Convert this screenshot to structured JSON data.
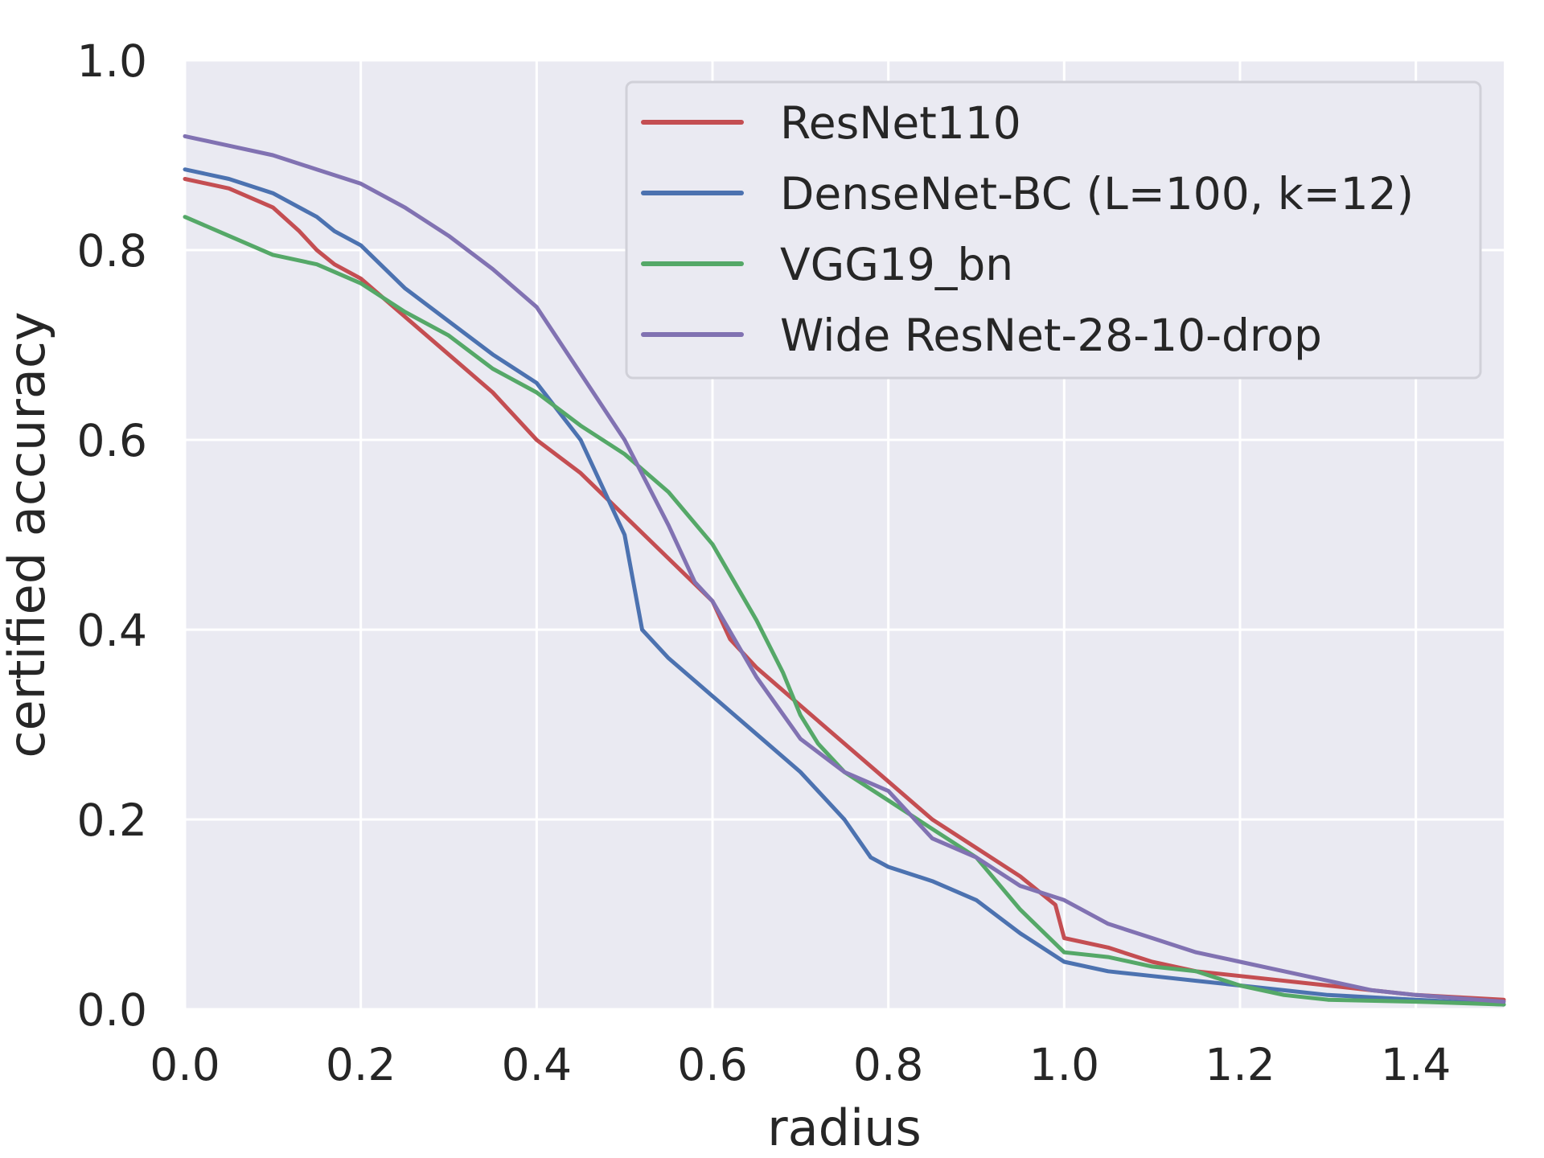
{
  "chart_data": {
    "type": "line",
    "title": "",
    "xlabel": "radius",
    "ylabel": "certified accuracy",
    "xlim": [
      0.0,
      1.5
    ],
    "ylim": [
      0.0,
      1.0
    ],
    "xticks": [
      "0.0",
      "0.2",
      "0.4",
      "0.6",
      "0.8",
      "1.0",
      "1.2",
      "1.4"
    ],
    "yticks": [
      "0.0",
      "0.2",
      "0.4",
      "0.6",
      "0.8",
      "1.0"
    ],
    "grid": true,
    "legend_position": "top-right",
    "series": [
      {
        "name": "ResNet110",
        "color": "#c44e52",
        "x": [
          0.0,
          0.05,
          0.1,
          0.13,
          0.15,
          0.17,
          0.2,
          0.25,
          0.3,
          0.35,
          0.4,
          0.45,
          0.5,
          0.55,
          0.6,
          0.62,
          0.65,
          0.7,
          0.75,
          0.8,
          0.85,
          0.9,
          0.95,
          0.99,
          1.0,
          1.05,
          1.1,
          1.15,
          1.2,
          1.3,
          1.4,
          1.5
        ],
        "y": [
          0.875,
          0.865,
          0.845,
          0.82,
          0.8,
          0.785,
          0.77,
          0.73,
          0.69,
          0.65,
          0.6,
          0.565,
          0.52,
          0.475,
          0.43,
          0.39,
          0.36,
          0.32,
          0.28,
          0.24,
          0.2,
          0.17,
          0.14,
          0.11,
          0.075,
          0.065,
          0.05,
          0.04,
          0.035,
          0.025,
          0.015,
          0.01
        ]
      },
      {
        "name": "DenseNet-BC (L=100, k=12)",
        "color": "#4c72b0",
        "x": [
          0.0,
          0.05,
          0.1,
          0.15,
          0.17,
          0.2,
          0.25,
          0.3,
          0.35,
          0.4,
          0.45,
          0.47,
          0.5,
          0.52,
          0.55,
          0.6,
          0.65,
          0.7,
          0.75,
          0.78,
          0.8,
          0.85,
          0.9,
          0.95,
          1.0,
          1.05,
          1.1,
          1.15,
          1.2,
          1.25,
          1.3,
          1.4,
          1.5
        ],
        "y": [
          0.885,
          0.875,
          0.86,
          0.835,
          0.82,
          0.805,
          0.76,
          0.725,
          0.69,
          0.66,
          0.6,
          0.56,
          0.5,
          0.4,
          0.37,
          0.33,
          0.29,
          0.25,
          0.2,
          0.16,
          0.15,
          0.135,
          0.115,
          0.08,
          0.05,
          0.04,
          0.035,
          0.03,
          0.025,
          0.02,
          0.015,
          0.01,
          0.005
        ]
      },
      {
        "name": "VGG19_bn",
        "color": "#55a868",
        "x": [
          0.0,
          0.05,
          0.1,
          0.15,
          0.2,
          0.25,
          0.3,
          0.35,
          0.4,
          0.45,
          0.5,
          0.55,
          0.6,
          0.65,
          0.68,
          0.7,
          0.72,
          0.75,
          0.8,
          0.85,
          0.9,
          0.95,
          1.0,
          1.05,
          1.1,
          1.15,
          1.2,
          1.25,
          1.3,
          1.4,
          1.5
        ],
        "y": [
          0.835,
          0.815,
          0.795,
          0.785,
          0.765,
          0.735,
          0.71,
          0.675,
          0.65,
          0.615,
          0.585,
          0.545,
          0.49,
          0.41,
          0.355,
          0.31,
          0.28,
          0.25,
          0.22,
          0.19,
          0.16,
          0.105,
          0.06,
          0.055,
          0.045,
          0.04,
          0.025,
          0.015,
          0.01,
          0.008,
          0.005
        ]
      },
      {
        "name": "Wide ResNet-28-10-drop",
        "color": "#8172b2",
        "x": [
          0.0,
          0.05,
          0.1,
          0.15,
          0.2,
          0.25,
          0.3,
          0.35,
          0.4,
          0.45,
          0.5,
          0.55,
          0.58,
          0.6,
          0.65,
          0.7,
          0.75,
          0.8,
          0.85,
          0.9,
          0.95,
          1.0,
          1.05,
          1.1,
          1.15,
          1.2,
          1.25,
          1.3,
          1.35,
          1.4,
          1.5
        ],
        "y": [
          0.92,
          0.91,
          0.9,
          0.885,
          0.87,
          0.845,
          0.815,
          0.78,
          0.74,
          0.67,
          0.6,
          0.51,
          0.45,
          0.43,
          0.35,
          0.285,
          0.25,
          0.23,
          0.18,
          0.16,
          0.13,
          0.115,
          0.09,
          0.075,
          0.06,
          0.05,
          0.04,
          0.03,
          0.02,
          0.015,
          0.008
        ]
      }
    ]
  }
}
